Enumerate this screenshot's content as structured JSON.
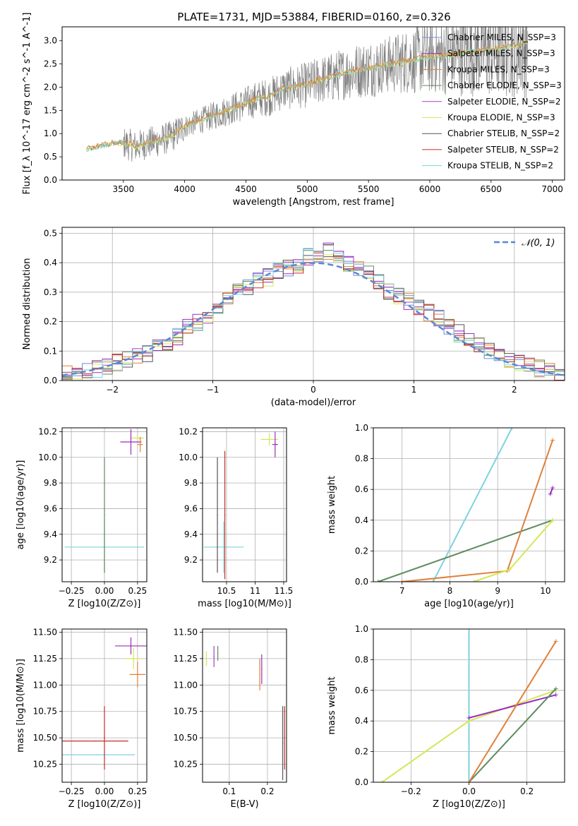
{
  "figure": {
    "title": "PLATE=1731, MJD=53884, FIBERID=0160, z=0.326"
  },
  "colors": {
    "chabrier_miles": "#6f8fd6",
    "salpeter_miles": "#9a2fb8",
    "kroupa_miles": "#e0803a",
    "chabrier_elodie": "#5e8a5e",
    "salpeter_elodie": "#a640c8",
    "kroupa_elodie": "#d6e65a",
    "chabrier_stelib": "#555555",
    "salpeter_stelib": "#c0302a",
    "kroupa_stelib": "#7fd3dd",
    "data_grey": "#808080",
    "normal_curve": "#5b86d6",
    "grid": "#b0b0b0"
  },
  "chart_data": [
    {
      "panel": "spectrum",
      "type": "line",
      "xlabel": "wavelength [Angstrom, rest frame]",
      "ylabel": "Flux [f_λ 10^-17 erg cm^-2 s^-1 A^-1]",
      "xlim": [
        3000,
        7100
      ],
      "ylim": [
        0,
        3.3
      ],
      "xticks": [
        3500,
        4000,
        4500,
        5000,
        5500,
        6000,
        6500,
        7000
      ],
      "yticks": [
        0.0,
        0.5,
        1.0,
        1.5,
        2.0,
        2.5,
        3.0
      ],
      "legend_position": "upper-right",
      "legend": [
        {
          "label": "Chabrier MILES, N_SSP=3",
          "color": "chabrier_miles"
        },
        {
          "label": "Salpeter MILES, N_SSP=3",
          "color": "salpeter_miles"
        },
        {
          "label": "Kroupa MILES, N_SSP=3",
          "color": "kroupa_miles"
        },
        {
          "label": "Chabrier ELODIE, N_SSP=3",
          "color": "chabrier_elodie"
        },
        {
          "label": "Salpeter ELODIE, N_SSP=2",
          "color": "salpeter_elodie"
        },
        {
          "label": "Kroupa ELODIE, N_SSP=3",
          "color": "kroupa_elodie"
        },
        {
          "label": "Chabrier STELIB, N_SSP=2",
          "color": "chabrier_stelib"
        },
        {
          "label": "Salpeter STELIB, N_SSP=2",
          "color": "salpeter_stelib"
        },
        {
          "label": "Kroupa STELIB, N_SSP=2",
          "color": "kroupa_stelib"
        }
      ],
      "model_continuum": {
        "x": [
          3200,
          3300,
          3400,
          3500,
          3600,
          3700,
          3800,
          3900,
          4000,
          4100,
          4200,
          4300,
          4400,
          4500,
          4600,
          4700,
          4800,
          4900,
          5000,
          5100,
          5200,
          5300,
          5400,
          5500,
          5600,
          5700,
          5800,
          5900,
          6000,
          6100,
          6200,
          6300,
          6400,
          6500,
          6600,
          6700,
          6800
        ],
        "y": [
          0.65,
          0.72,
          0.78,
          0.8,
          0.72,
          0.8,
          0.85,
          0.95,
          1.15,
          1.25,
          1.35,
          1.45,
          1.55,
          1.65,
          1.75,
          1.8,
          1.95,
          2.0,
          2.05,
          2.15,
          2.2,
          2.3,
          2.35,
          2.4,
          2.45,
          2.5,
          2.55,
          2.6,
          2.65,
          2.68,
          2.7,
          2.75,
          2.78,
          2.8,
          2.85,
          2.9,
          2.95
        ]
      }
    },
    {
      "panel": "residuals",
      "type": "line",
      "xlabel": "(data-model)/error",
      "ylabel": "Normed distribution",
      "xlim": [
        -2.5,
        2.5
      ],
      "ylim": [
        0,
        0.52
      ],
      "xticks": [
        -2,
        -1,
        0,
        1,
        2
      ],
      "yticks": [
        0.0,
        0.1,
        0.2,
        0.3,
        0.4,
        0.5
      ],
      "legend_position": "upper-right",
      "normal_label": "𝒩(0, 1)",
      "hist_edges_start": -2.5,
      "hist_bin_width": 0.1,
      "hist_values": [
        0.02,
        0.02,
        0.03,
        0.04,
        0.05,
        0.06,
        0.07,
        0.08,
        0.09,
        0.11,
        0.13,
        0.15,
        0.18,
        0.2,
        0.22,
        0.25,
        0.28,
        0.3,
        0.32,
        0.34,
        0.35,
        0.37,
        0.38,
        0.39,
        0.42,
        0.41,
        0.44,
        0.43,
        0.4,
        0.38,
        0.36,
        0.34,
        0.3,
        0.29,
        0.27,
        0.25,
        0.23,
        0.21,
        0.18,
        0.16,
        0.14,
        0.12,
        0.1,
        0.09,
        0.07,
        0.06,
        0.05,
        0.04,
        0.03,
        0.02
      ]
    },
    {
      "panel": "age_vs_Z",
      "type": "scatter",
      "xlabel": "Z [log10(Z/Z⊙)]",
      "ylabel": "age [log10(age/yr)]",
      "xlim": [
        -0.32,
        0.32
      ],
      "ylim": [
        9.03,
        10.23
      ],
      "xticks": [
        -0.25,
        0.0,
        0.25
      ],
      "xticklabels": [
        "−0.25",
        "0.00",
        "0.25"
      ],
      "yticks": [
        9.2,
        9.4,
        9.6,
        9.8,
        10.0,
        10.2
      ],
      "points": [
        {
          "x": 0.0,
          "y": 9.3,
          "xerr": 0.3,
          "yerr": 0.2,
          "color": "kroupa_stelib"
        },
        {
          "x": 0.0,
          "y": 9.55,
          "xerr": 0.0,
          "yerr": 0.45,
          "color": "chabrier_elodie"
        },
        {
          "x": 0.25,
          "y": 10.15,
          "xerr": 0.05,
          "yerr": 0.02,
          "color": "kroupa_elodie"
        },
        {
          "x": 0.2,
          "y": 10.12,
          "xerr": 0.08,
          "yerr": 0.1,
          "color": "salpeter_miles"
        },
        {
          "x": 0.27,
          "y": 10.1,
          "xerr": 0.02,
          "yerr": 0.06,
          "color": "kroupa_miles"
        }
      ]
    },
    {
      "panel": "age_vs_mass",
      "type": "scatter",
      "xlabel": "mass [log10(M/M⊙)]",
      "xlim": [
        10.08,
        11.55
      ],
      "ylim": [
        9.03,
        10.23
      ],
      "xticks": [
        10.5,
        11.0,
        11.5
      ],
      "yticks": [
        9.2,
        9.4,
        9.6,
        9.8,
        10.0,
        10.2
      ],
      "points": [
        {
          "x": 10.45,
          "y": 9.3,
          "xerr": 0.35,
          "yerr": 0.2,
          "color": "kroupa_stelib"
        },
        {
          "x": 10.34,
          "y": 9.55,
          "xerr": 0.0,
          "yerr": 0.45,
          "color": "chabrier_stelib"
        },
        {
          "x": 10.47,
          "y": 9.55,
          "xerr": 0.0,
          "yerr": 0.5,
          "color": "salpeter_stelib"
        },
        {
          "x": 11.25,
          "y": 10.14,
          "xerr": 0.15,
          "yerr": 0.05,
          "color": "kroupa_elodie"
        },
        {
          "x": 11.35,
          "y": 10.1,
          "xerr": 0.05,
          "yerr": 0.1,
          "color": "salpeter_miles"
        }
      ]
    },
    {
      "panel": "mass_weight_vs_age",
      "type": "line",
      "xlabel": "age [log10(age/yr)]",
      "ylabel": "mass weight",
      "xlim": [
        6.4,
        10.4
      ],
      "ylim": [
        0,
        1
      ],
      "xticks": [
        7,
        8,
        9,
        10
      ],
      "yticks": [
        0.0,
        0.2,
        0.4,
        0.6,
        0.8,
        1.0
      ],
      "series": [
        {
          "color": "kroupa_stelib",
          "x": [
            7.65,
            9.3
          ],
          "y": [
            0.0,
            1.0
          ]
        },
        {
          "color": "chabrier_elodie",
          "x": [
            6.5,
            10.15
          ],
          "y": [
            0.0,
            0.4
          ]
        },
        {
          "color": "kroupa_miles",
          "x": [
            7.0,
            9.2,
            10.15
          ],
          "y": [
            0.0,
            0.07,
            0.92
          ]
        },
        {
          "color": "kroupa_elodie",
          "x": [
            8.5,
            9.25,
            10.15
          ],
          "y": [
            0.0,
            0.08,
            0.4
          ]
        },
        {
          "color": "salpeter_miles",
          "x": [
            10.1,
            10.15
          ],
          "y": [
            0.57,
            0.61
          ]
        }
      ]
    },
    {
      "panel": "mass_vs_Z",
      "type": "scatter",
      "xlabel": "Z [log10(Z/Z⊙)]",
      "ylabel": "mass [log10(M/M⊙)]",
      "xlim": [
        -0.32,
        0.32
      ],
      "ylim": [
        10.08,
        11.53
      ],
      "xticks": [
        -0.25,
        0.0,
        0.25
      ],
      "xticklabels": [
        "−0.25",
        "0.00",
        "0.25"
      ],
      "yticks": [
        10.25,
        10.5,
        10.75,
        11.0,
        11.25,
        11.5
      ],
      "points": [
        {
          "x": -0.07,
          "y": 10.47,
          "xerr": 0.25,
          "yerr": 0.0,
          "color": "salpeter_stelib"
        },
        {
          "x": -0.05,
          "y": 10.34,
          "xerr": 0.28,
          "yerr": 0.0,
          "color": "kroupa_stelib"
        },
        {
          "x": 0.0,
          "y": 10.5,
          "xerr": 0.0,
          "yerr": 0.3,
          "color": "salpeter_stelib"
        },
        {
          "x": 0.2,
          "y": 11.37,
          "xerr": 0.12,
          "yerr": 0.08,
          "color": "salpeter_miles"
        },
        {
          "x": 0.25,
          "y": 11.1,
          "xerr": 0.06,
          "yerr": 0.12,
          "color": "kroupa_miles"
        },
        {
          "x": 0.22,
          "y": 11.25,
          "xerr": 0.06,
          "yerr": 0.1,
          "color": "kroupa_elodie"
        }
      ]
    },
    {
      "panel": "mass_vs_ebv",
      "type": "scatter",
      "xlabel": "E(B-V)",
      "xlim": [
        0.03,
        0.25
      ],
      "ylim": [
        10.08,
        11.53
      ],
      "xticks": [
        0.1,
        0.2
      ],
      "yticks": [
        10.25,
        10.5,
        10.75,
        11.0,
        11.25,
        11.5
      ],
      "points": [
        {
          "x": 0.04,
          "y": 11.25,
          "yerr": 0.07,
          "color": "kroupa_elodie"
        },
        {
          "x": 0.06,
          "y": 11.27,
          "yerr": 0.1,
          "color": "salpeter_elodie"
        },
        {
          "x": 0.07,
          "y": 11.3,
          "yerr": 0.07,
          "color": "chabrier_elodie"
        },
        {
          "x": 0.18,
          "y": 11.1,
          "yerr": 0.15,
          "color": "kroupa_miles"
        },
        {
          "x": 0.185,
          "y": 11.15,
          "yerr": 0.14,
          "color": "salpeter_miles"
        },
        {
          "x": 0.24,
          "y": 10.45,
          "yerr": 0.35,
          "color": "chabrier_stelib"
        },
        {
          "x": 0.245,
          "y": 10.5,
          "yerr": 0.3,
          "color": "salpeter_stelib"
        }
      ]
    },
    {
      "panel": "mass_weight_vs_Z",
      "type": "line",
      "xlabel": "Z [log10(Z/Z⊙)]",
      "ylabel": "mass weight",
      "xlim": [
        -0.33,
        0.33
      ],
      "ylim": [
        0,
        1
      ],
      "xticks": [
        -0.2,
        0.0,
        0.2
      ],
      "xticklabels": [
        "−0.2",
        "0.0",
        "0.2"
      ],
      "yticks": [
        0.0,
        0.2,
        0.4,
        0.6,
        0.8,
        1.0
      ],
      "series": [
        {
          "color": "kroupa_stelib",
          "x": [
            0.0,
            0.0
          ],
          "y": [
            0.0,
            1.0
          ]
        },
        {
          "color": "kroupa_elodie",
          "x": [
            -0.3,
            0.0,
            0.3
          ],
          "y": [
            0.0,
            0.4,
            0.6
          ]
        },
        {
          "color": "salpeter_miles",
          "x": [
            0.0,
            0.3
          ],
          "y": [
            0.42,
            0.57
          ]
        },
        {
          "color": "chabrier_elodie",
          "x": [
            0.0,
            0.3
          ],
          "y": [
            0.0,
            0.61
          ]
        },
        {
          "color": "kroupa_miles",
          "x": [
            0.0,
            0.3
          ],
          "y": [
            0.0,
            0.92
          ]
        }
      ]
    }
  ]
}
